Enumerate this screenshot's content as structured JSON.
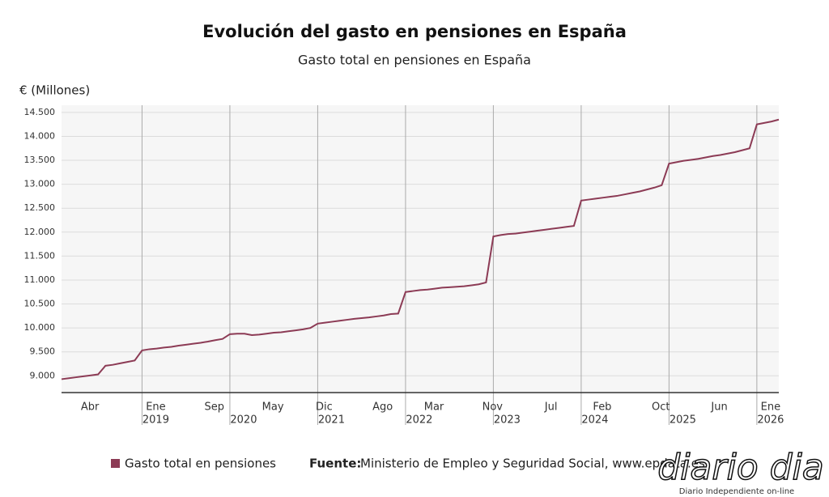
{
  "chart_data": {
    "type": "line",
    "title": "Evolución del gasto en pensiones en España",
    "subtitle": "Gasto total en pensiones en España",
    "y_axis_label": "€ (Millones)",
    "x": [
      "2018-02",
      "2018-03",
      "2018-04",
      "2018-05",
      "2018-06",
      "2018-07",
      "2018-08",
      "2018-09",
      "2018-10",
      "2018-11",
      "2018-12",
      "2019-01",
      "2019-02",
      "2019-03",
      "2019-04",
      "2019-05",
      "2019-06",
      "2019-07",
      "2019-08",
      "2019-09",
      "2019-10",
      "2019-11",
      "2019-12",
      "2020-01",
      "2020-02",
      "2020-03",
      "2020-04",
      "2020-05",
      "2020-06",
      "2020-07",
      "2020-08",
      "2020-09",
      "2020-10",
      "2020-11",
      "2020-12",
      "2021-01",
      "2021-02",
      "2021-03",
      "2021-04",
      "2021-05",
      "2021-06",
      "2021-07",
      "2021-08",
      "2021-09",
      "2021-10",
      "2021-11",
      "2021-12",
      "2022-01",
      "2022-02",
      "2022-03",
      "2022-04",
      "2022-05",
      "2022-06",
      "2022-07",
      "2022-08",
      "2022-09",
      "2022-10",
      "2022-11",
      "2022-12",
      "2023-01",
      "2023-02",
      "2023-03",
      "2023-04",
      "2023-05",
      "2023-06",
      "2023-07",
      "2023-08",
      "2023-09",
      "2023-10",
      "2023-11",
      "2023-12",
      "2024-01",
      "2024-02",
      "2024-03",
      "2024-04",
      "2024-05",
      "2024-06",
      "2024-07",
      "2024-08",
      "2024-09",
      "2024-10",
      "2024-11",
      "2024-12",
      "2025-01",
      "2025-02",
      "2025-03",
      "2025-04",
      "2025-05",
      "2025-06",
      "2025-07",
      "2025-08",
      "2025-09",
      "2025-10",
      "2025-11",
      "2025-12",
      "2026-01",
      "2026-02",
      "2026-03",
      "2026-04"
    ],
    "series": [
      {
        "name": "Gasto total en pensiones",
        "color": "#8c3b55",
        "values": [
          8930,
          8950,
          8970,
          8990,
          9010,
          9030,
          9210,
          9230,
          9260,
          9290,
          9320,
          9530,
          9555,
          9570,
          9590,
          9605,
          9630,
          9650,
          9670,
          9690,
          9715,
          9745,
          9770,
          9870,
          9880,
          9880,
          9850,
          9860,
          9880,
          9900,
          9910,
          9930,
          9950,
          9970,
          10000,
          10090,
          10110,
          10130,
          10150,
          10170,
          10190,
          10205,
          10220,
          10240,
          10260,
          10290,
          10300,
          10750,
          10770,
          10790,
          10800,
          10820,
          10840,
          10850,
          10860,
          10870,
          10890,
          10910,
          10950,
          11910,
          11940,
          11960,
          11970,
          11990,
          12010,
          12030,
          12050,
          12070,
          12090,
          12110,
          12130,
          12660,
          12680,
          12700,
          12720,
          12740,
          12760,
          12790,
          12820,
          12850,
          12890,
          12930,
          12980,
          13430,
          13460,
          13490,
          13510,
          13530,
          13560,
          13590,
          13610,
          13640,
          13670,
          13710,
          13750,
          14250,
          14280,
          14310,
          14350
        ]
      }
    ],
    "ylim": [
      8650,
      14650
    ],
    "yticks": [
      {
        "value": 9000,
        "label": "9.000"
      },
      {
        "value": 9500,
        "label": "9.500"
      },
      {
        "value": 10000,
        "label": "10.000"
      },
      {
        "value": 10500,
        "label": "10.500"
      },
      {
        "value": 11000,
        "label": "11.000"
      },
      {
        "value": 11500,
        "label": "11.500"
      },
      {
        "value": 12000,
        "label": "12.000"
      },
      {
        "value": 12500,
        "label": "12.500"
      },
      {
        "value": 13000,
        "label": "13.000"
      },
      {
        "value": 13500,
        "label": "13.500"
      },
      {
        "value": 14000,
        "label": "14.000"
      },
      {
        "value": 14500,
        "label": "14.500"
      }
    ],
    "xticks": [
      {
        "value": "2018-04",
        "label": "Abr"
      },
      {
        "value": "2019-01",
        "label": "Ene"
      },
      {
        "value": "2019-09",
        "label": "Sep"
      },
      {
        "value": "2020-05",
        "label": "May"
      },
      {
        "value": "2020-12",
        "label": "Dic"
      },
      {
        "value": "2021-08",
        "label": "Ago"
      },
      {
        "value": "2022-03",
        "label": "Mar"
      },
      {
        "value": "2022-11",
        "label": "Nov"
      },
      {
        "value": "2023-07",
        "label": "Jul"
      },
      {
        "value": "2024-02",
        "label": "Feb"
      },
      {
        "value": "2024-10",
        "label": "Oct"
      },
      {
        "value": "2025-06",
        "label": "Jun"
      },
      {
        "value": "2026-01",
        "label": "Ene"
      }
    ],
    "year_ticks": [
      {
        "value": "2019-01",
        "label": "2019"
      },
      {
        "value": "2020-01",
        "label": "2020"
      },
      {
        "value": "2021-01",
        "label": "2021"
      },
      {
        "value": "2022-01",
        "label": "2022"
      },
      {
        "value": "2023-01",
        "label": "2023"
      },
      {
        "value": "2024-01",
        "label": "2024"
      },
      {
        "value": "2025-01",
        "label": "2025"
      },
      {
        "value": "2026-01",
        "label": "2026"
      }
    ],
    "grid": true,
    "source_label": "Fuente:",
    "source": "Ministerio de Empleo y Seguridad Social, www.epdata.es",
    "watermark": "diario dia",
    "watermark_tagline": "Diario Independiente on-line"
  }
}
